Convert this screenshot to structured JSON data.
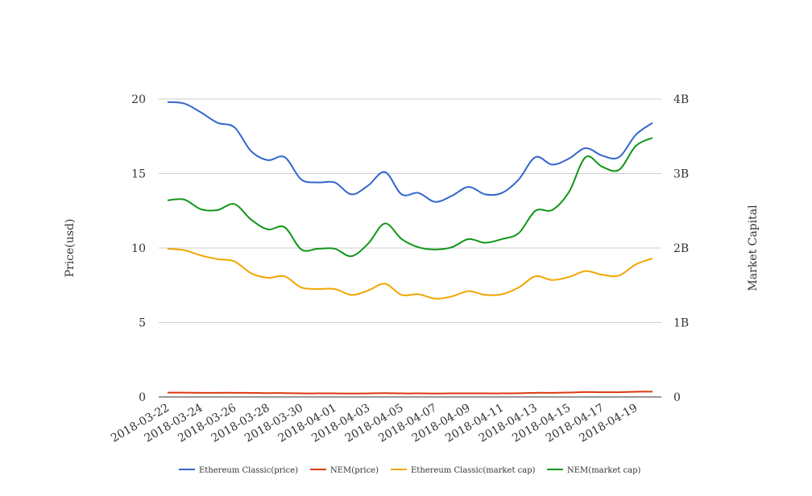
{
  "chart_data": {
    "type": "line",
    "x": [
      "2018-03-22",
      "2018-03-23",
      "2018-03-24",
      "2018-03-25",
      "2018-03-26",
      "2018-03-27",
      "2018-03-28",
      "2018-03-29",
      "2018-03-30",
      "2018-03-31",
      "2018-04-01",
      "2018-04-02",
      "2018-04-03",
      "2018-04-04",
      "2018-04-05",
      "2018-04-06",
      "2018-04-07",
      "2018-04-08",
      "2018-04-09",
      "2018-04-10",
      "2018-04-11",
      "2018-04-12",
      "2018-04-13",
      "2018-04-14",
      "2018-04-15",
      "2018-04-16",
      "2018-04-17",
      "2018-04-18",
      "2018-04-19",
      "2018-04-20"
    ],
    "x_tick_labels": [
      "2018-03-22",
      "2018-03-24",
      "2018-03-26",
      "2018-03-28",
      "2018-03-30",
      "2018-04-01",
      "2018-04-03",
      "2018-04-05",
      "2018-04-07",
      "2018-04-09",
      "2018-04-11",
      "2018-04-13",
      "2018-04-15",
      "2018-04-17",
      "2018-04-19"
    ],
    "y_left": {
      "label": "Price(usd)",
      "ticks": [
        "0",
        "5",
        "10",
        "15",
        "20"
      ],
      "ylim": [
        0,
        20
      ]
    },
    "y_right": {
      "label": "Market Capital",
      "ticks": [
        "0",
        "1B",
        "2B",
        "3B",
        "4B"
      ],
      "ylim": [
        0,
        4000000000
      ]
    },
    "grid": true,
    "legend_position": "bottom",
    "series": [
      {
        "name": "Ethereum Classic(price)",
        "axis": "left",
        "color": "#3366cc",
        "values": [
          19.8,
          19.7,
          19.1,
          18.4,
          18.1,
          16.5,
          15.9,
          16.1,
          14.6,
          14.4,
          14.4,
          13.6,
          14.2,
          15.1,
          13.6,
          13.7,
          13.1,
          13.5,
          14.1,
          13.6,
          13.7,
          14.6,
          16.1,
          15.6,
          16.0,
          16.7,
          16.2,
          16.1,
          17.6,
          18.4
        ]
      },
      {
        "name": "NEM(price)",
        "axis": "left",
        "color": "#dc3912",
        "values": [
          0.29,
          0.29,
          0.28,
          0.28,
          0.28,
          0.27,
          0.26,
          0.26,
          0.24,
          0.24,
          0.24,
          0.23,
          0.24,
          0.26,
          0.24,
          0.24,
          0.23,
          0.24,
          0.24,
          0.24,
          0.24,
          0.25,
          0.28,
          0.28,
          0.3,
          0.33,
          0.32,
          0.32,
          0.35,
          0.36
        ]
      },
      {
        "name": "Ethereum Classic(market cap)",
        "axis": "right",
        "color": "#f1a600",
        "values": [
          1990000000,
          1970000000,
          1900000000,
          1850000000,
          1820000000,
          1660000000,
          1600000000,
          1620000000,
          1470000000,
          1450000000,
          1450000000,
          1370000000,
          1430000000,
          1520000000,
          1370000000,
          1380000000,
          1320000000,
          1350000000,
          1420000000,
          1370000000,
          1380000000,
          1470000000,
          1620000000,
          1570000000,
          1610000000,
          1690000000,
          1640000000,
          1630000000,
          1780000000,
          1860000000
        ]
      },
      {
        "name": "NEM(market cap)",
        "axis": "right",
        "color": "#109618",
        "values": [
          2640000000,
          2650000000,
          2520000000,
          2510000000,
          2590000000,
          2380000000,
          2250000000,
          2280000000,
          1980000000,
          1990000000,
          1990000000,
          1890000000,
          2060000000,
          2330000000,
          2120000000,
          2010000000,
          1980000000,
          2010000000,
          2120000000,
          2070000000,
          2120000000,
          2200000000,
          2500000000,
          2510000000,
          2750000000,
          3220000000,
          3090000000,
          3050000000,
          3370000000,
          3480000000
        ]
      }
    ]
  }
}
